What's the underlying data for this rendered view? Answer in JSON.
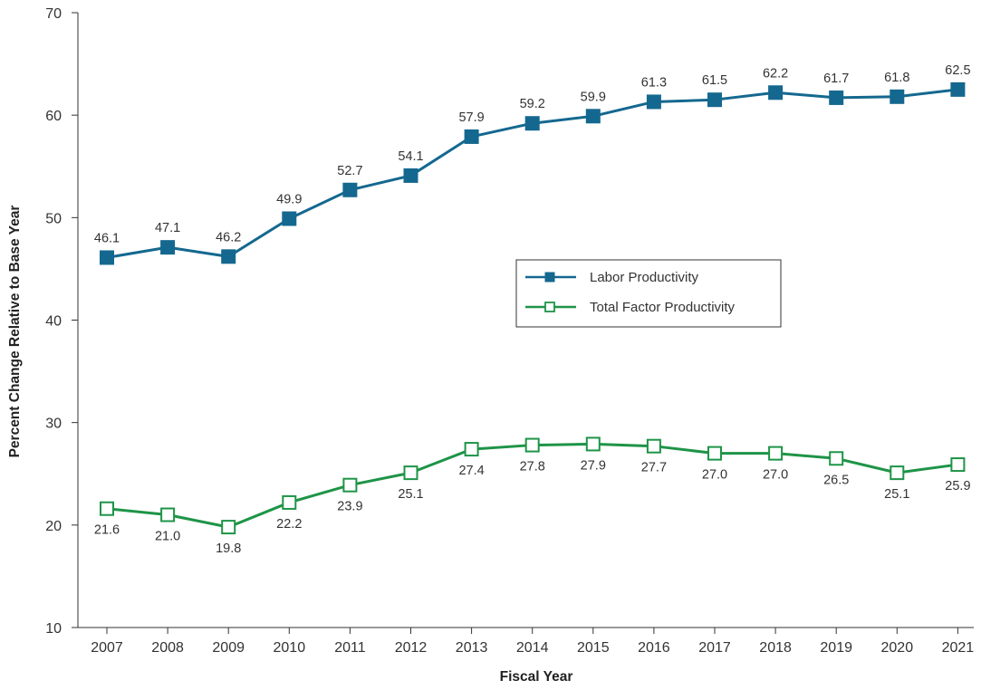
{
  "chart_data": {
    "type": "line",
    "title": "",
    "xlabel": "Fiscal Year",
    "ylabel": "Percent Change Relative to Base Year",
    "ylim": [
      10,
      70
    ],
    "yticks": [
      10,
      20,
      30,
      40,
      50,
      60,
      70
    ],
    "categories": [
      "2007",
      "2008",
      "2009",
      "2010",
      "2011",
      "2012",
      "2013",
      "2014",
      "2015",
      "2016",
      "2017",
      "2018",
      "2019",
      "2020",
      "2021"
    ],
    "grid": false,
    "legend_position": "center-right",
    "series": [
      {
        "name": "Labor Productivity",
        "values": [
          46.1,
          47.1,
          46.2,
          49.9,
          52.7,
          54.1,
          57.9,
          59.2,
          59.9,
          61.3,
          61.5,
          62.2,
          61.7,
          61.8,
          62.5
        ],
        "labels": [
          "46.1",
          "47.1",
          "46.2",
          "49.9",
          "52.7",
          "54.1",
          "57.9",
          "59.2",
          "59.9",
          "61.3",
          "61.5",
          "62.2",
          "61.7",
          "61.8",
          "62.5"
        ],
        "color": "#14688f",
        "marker": "filled-square",
        "label_position": "above"
      },
      {
        "name": "Total Factor Productivity",
        "values": [
          21.6,
          21.0,
          19.8,
          22.2,
          23.9,
          25.1,
          27.4,
          27.8,
          27.9,
          27.7,
          27.0,
          27.0,
          26.5,
          25.1,
          25.9
        ],
        "labels": [
          "21.6",
          "21.0",
          "19.8",
          "22.2",
          "23.9",
          "25.1",
          "27.4",
          "27.8",
          "27.9",
          "27.7",
          "27.0",
          "27.0",
          "26.5",
          "25.1",
          "25.9"
        ],
        "color": "#1e9447",
        "marker": "open-square",
        "label_position": "below"
      }
    ]
  }
}
